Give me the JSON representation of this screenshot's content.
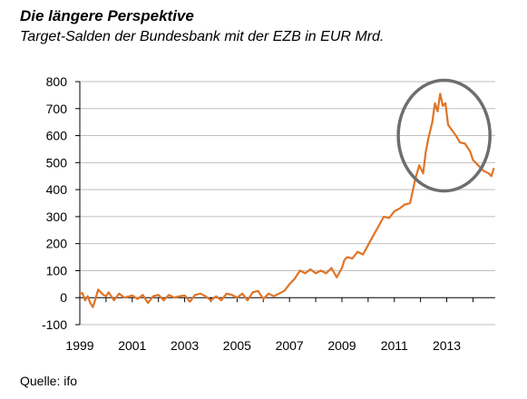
{
  "header": {
    "title": "Die längere Perspektive",
    "subtitle": "Target-Salden der Bundesbank mit der EZB in EUR Mrd."
  },
  "footer": {
    "source": "Quelle: ifo"
  },
  "colors": {
    "line": "#E07426",
    "grid": "#BFBFBF",
    "circle": "#6E6E6E",
    "axis": "#000000"
  },
  "chart_data": {
    "type": "line",
    "title": "Die längere Perspektive",
    "subtitle": "Target-Salden der Bundesbank mit der EZB in EUR Mrd.",
    "xlabel": "",
    "ylabel": "",
    "xlim": [
      1999,
      2014.85
    ],
    "ylim": [
      -100,
      800
    ],
    "yticks": [
      -100,
      0,
      100,
      200,
      300,
      400,
      500,
      600,
      700,
      800
    ],
    "xticks": [
      "1999",
      "2001",
      "2003",
      "2005",
      "2007",
      "2009",
      "2011",
      "2013"
    ],
    "grid": "horizontal",
    "annotation": {
      "type": "ellipse",
      "center": [
        2012.9,
        600
      ],
      "radii_years": [
        1.75
      ],
      "radii_values": [
        205
      ]
    },
    "series": [
      {
        "x": [
          1999.0,
          1999.1,
          1999.2,
          1999.3,
          1999.4,
          1999.5,
          1999.6,
          1999.7,
          1999.8,
          1999.9,
          2000.0,
          2000.1,
          2000.2,
          2000.3,
          2000.5,
          2000.7,
          2000.9,
          2001.0,
          2001.2,
          2001.4,
          2001.6,
          2001.8,
          2002.0,
          2002.2,
          2002.4,
          2002.6,
          2002.8,
          2003.0,
          2003.2,
          2003.4,
          2003.6,
          2003.8,
          2004.0,
          2004.2,
          2004.4,
          2004.6,
          2004.8,
          2005.0,
          2005.2,
          2005.4,
          2005.6,
          2005.8,
          2006.0,
          2006.2,
          2006.4,
          2006.6,
          2006.8,
          2007.0,
          2007.2,
          2007.4,
          2007.6,
          2007.8,
          2008.0,
          2008.2,
          2008.4,
          2008.6,
          2008.8,
          2009.0,
          2009.1,
          2009.2,
          2009.4,
          2009.6,
          2009.8,
          2010.0,
          2010.2,
          2010.4,
          2010.6,
          2010.8,
          2011.0,
          2011.2,
          2011.4,
          2011.6,
          2011.8,
          2011.95,
          2012.1,
          2012.2,
          2012.3,
          2012.45,
          2012.55,
          2012.65,
          2012.75,
          2012.85,
          2012.95,
          2013.05,
          2013.2,
          2013.35,
          2013.5,
          2013.7,
          2013.9,
          2014.0,
          2014.2,
          2014.4,
          2014.6,
          2014.7,
          2014.8
        ],
        "y": [
          15,
          17,
          -10,
          5,
          -20,
          -35,
          -5,
          30,
          20,
          10,
          5,
          20,
          5,
          -10,
          15,
          0,
          5,
          8,
          -5,
          10,
          -20,
          5,
          10,
          -10,
          10,
          0,
          5,
          8,
          -15,
          10,
          15,
          5,
          -10,
          5,
          -10,
          15,
          10,
          0,
          15,
          -10,
          20,
          25,
          -5,
          15,
          5,
          15,
          25,
          50,
          70,
          100,
          90,
          105,
          90,
          100,
          90,
          110,
          75,
          110,
          140,
          150,
          145,
          170,
          160,
          195,
          230,
          265,
          300,
          295,
          320,
          330,
          345,
          350,
          440,
          490,
          460,
          540,
          590,
          650,
          720,
          690,
          755,
          710,
          720,
          640,
          620,
          600,
          575,
          570,
          540,
          510,
          490,
          470,
          460,
          450,
          480
        ]
      }
    ]
  }
}
